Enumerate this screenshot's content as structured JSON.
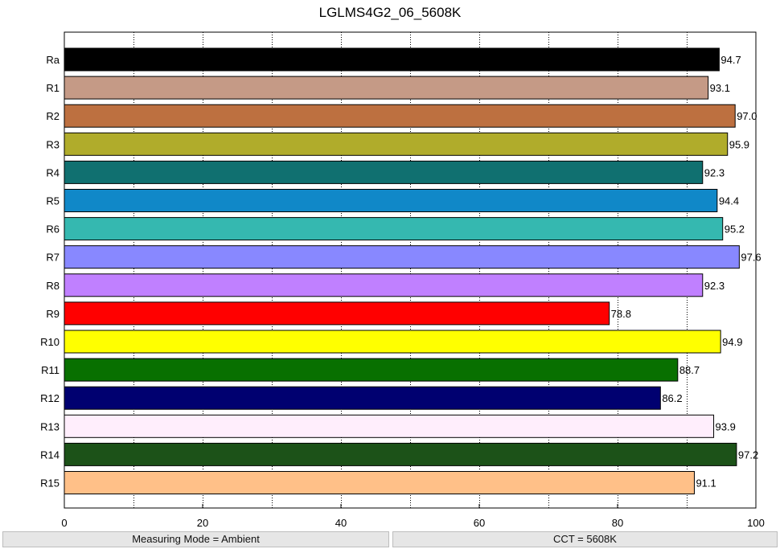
{
  "chart_data": {
    "type": "bar",
    "orientation": "horizontal",
    "title": "LGLMS4G2_06_5608K",
    "xlabel": "",
    "ylabel": "",
    "xlim": [
      0,
      100
    ],
    "x_ticks": [
      0,
      20,
      40,
      60,
      80,
      100
    ],
    "grid": "vertical dotted",
    "categories": [
      "Ra",
      "R1",
      "R2",
      "R3",
      "R4",
      "R5",
      "R6",
      "R7",
      "R8",
      "R9",
      "R10",
      "R11",
      "R12",
      "R13",
      "R14",
      "R15"
    ],
    "values": [
      94.7,
      93.1,
      97.0,
      95.9,
      92.3,
      94.4,
      95.2,
      97.6,
      92.3,
      78.8,
      94.9,
      88.7,
      86.2,
      93.9,
      97.2,
      91.1
    ],
    "value_labels": [
      "94.7",
      "93.1",
      "97.0",
      "95.9",
      "92.3",
      "94.4",
      "95.2",
      "97.6",
      "92.3",
      "78.8",
      "94.9",
      "88.7",
      "86.2",
      "93.9",
      "97.2",
      "91.1"
    ],
    "colors": [
      "#000000",
      "#c59a86",
      "#bd7040",
      "#b0ac2b",
      "#107070",
      "#1088c8",
      "#35b8b0",
      "#8888ff",
      "#c080ff",
      "#ff0000",
      "#ffff00",
      "#087000",
      "#000070",
      "#ffeefc",
      "#1c5218",
      "#ffc088"
    ]
  },
  "status": {
    "measuring_mode": "Measuring Mode = Ambient",
    "cct": "CCT = 5608K"
  }
}
